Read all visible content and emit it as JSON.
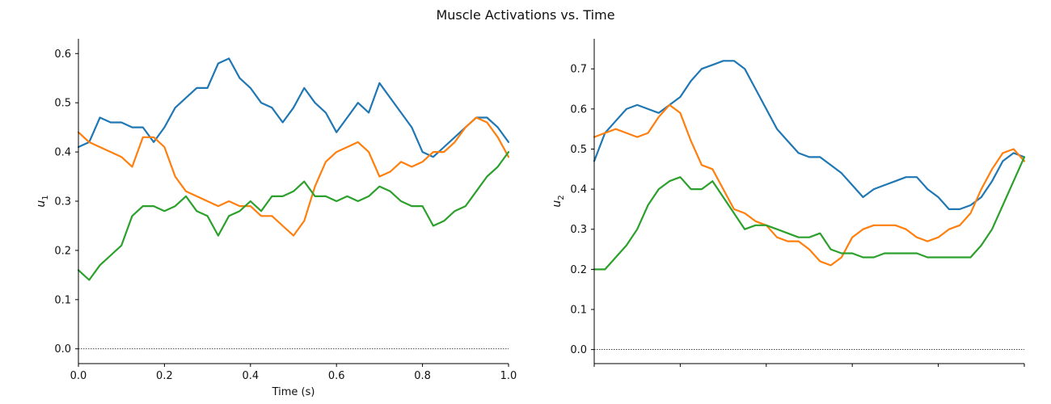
{
  "figure": {
    "title": "Muscle Activations vs. Time"
  },
  "colors": {
    "series_1": "#1f77b4",
    "series_2": "#ff7f0e",
    "series_3": "#2ca02c",
    "axis": "#000000"
  },
  "chart_data": [
    {
      "type": "line",
      "xlabel": "Time (s)",
      "ylabel": "u",
      "ylabel_subscript": "1",
      "xlim": [
        0.0,
        1.0
      ],
      "ylim": [
        -0.03,
        0.63
      ],
      "xticks": [
        "0.0",
        "0.2",
        "0.4",
        "0.6",
        "0.8",
        "1.0"
      ],
      "yticks": [
        "0.0",
        "0.1",
        "0.2",
        "0.3",
        "0.4",
        "0.5",
        "0.6"
      ],
      "reference_line": {
        "y": 0.0,
        "style": "dotted"
      },
      "grid": false,
      "x": [
        0.0,
        0.025,
        0.05,
        0.075,
        0.1,
        0.125,
        0.15,
        0.175,
        0.2,
        0.225,
        0.25,
        0.275,
        0.3,
        0.325,
        0.35,
        0.375,
        0.4,
        0.425,
        0.45,
        0.475,
        0.5,
        0.525,
        0.55,
        0.575,
        0.6,
        0.625,
        0.65,
        0.675,
        0.7,
        0.725,
        0.75,
        0.775,
        0.8,
        0.825,
        0.85,
        0.875,
        0.9,
        0.925,
        0.95,
        0.975,
        1.0
      ],
      "series": [
        {
          "values": [
            0.41,
            0.42,
            0.47,
            0.46,
            0.46,
            0.45,
            0.45,
            0.42,
            0.45,
            0.49,
            0.51,
            0.53,
            0.53,
            0.58,
            0.59,
            0.55,
            0.53,
            0.5,
            0.49,
            0.46,
            0.49,
            0.53,
            0.5,
            0.48,
            0.44,
            0.47,
            0.5,
            0.48,
            0.54,
            0.51,
            0.48,
            0.45,
            0.4,
            0.39,
            0.41,
            0.43,
            0.45,
            0.47,
            0.47,
            0.45,
            0.42
          ]
        },
        {
          "values": [
            0.44,
            0.42,
            0.41,
            0.4,
            0.39,
            0.37,
            0.43,
            0.43,
            0.41,
            0.35,
            0.32,
            0.31,
            0.3,
            0.29,
            0.3,
            0.29,
            0.29,
            0.27,
            0.27,
            0.25,
            0.23,
            0.26,
            0.33,
            0.38,
            0.4,
            0.41,
            0.42,
            0.4,
            0.35,
            0.36,
            0.38,
            0.37,
            0.38,
            0.4,
            0.4,
            0.42,
            0.45,
            0.47,
            0.46,
            0.43,
            0.39
          ]
        },
        {
          "values": [
            0.16,
            0.14,
            0.17,
            0.19,
            0.21,
            0.27,
            0.29,
            0.29,
            0.28,
            0.29,
            0.31,
            0.28,
            0.27,
            0.23,
            0.27,
            0.28,
            0.3,
            0.28,
            0.31,
            0.31,
            0.32,
            0.34,
            0.31,
            0.31,
            0.3,
            0.31,
            0.3,
            0.31,
            0.33,
            0.32,
            0.3,
            0.29,
            0.29,
            0.25,
            0.26,
            0.28,
            0.29,
            0.32,
            0.35,
            0.37,
            0.4
          ]
        }
      ]
    },
    {
      "type": "line",
      "xlabel": "",
      "ylabel": "u",
      "ylabel_subscript": "2",
      "xlim": [
        0.0,
        1.0
      ],
      "ylim": [
        -0.035,
        0.775
      ],
      "xticks": [
        "",
        "",
        "",
        "",
        "",
        ""
      ],
      "yticks": [
        "0.0",
        "0.1",
        "0.2",
        "0.3",
        "0.4",
        "0.5",
        "0.6",
        "0.7"
      ],
      "reference_line": {
        "y": 0.0,
        "style": "dotted"
      },
      "grid": false,
      "x": [
        0.0,
        0.025,
        0.05,
        0.075,
        0.1,
        0.125,
        0.15,
        0.175,
        0.2,
        0.225,
        0.25,
        0.275,
        0.3,
        0.325,
        0.35,
        0.375,
        0.4,
        0.425,
        0.45,
        0.475,
        0.5,
        0.525,
        0.55,
        0.575,
        0.6,
        0.625,
        0.65,
        0.675,
        0.7,
        0.725,
        0.75,
        0.775,
        0.8,
        0.825,
        0.85,
        0.875,
        0.9,
        0.925,
        0.95,
        0.975,
        1.0
      ],
      "series": [
        {
          "values": [
            0.47,
            0.54,
            0.57,
            0.6,
            0.61,
            0.6,
            0.59,
            0.61,
            0.63,
            0.67,
            0.7,
            0.71,
            0.72,
            0.72,
            0.7,
            0.65,
            0.6,
            0.55,
            0.52,
            0.49,
            0.48,
            0.48,
            0.46,
            0.44,
            0.41,
            0.38,
            0.4,
            0.41,
            0.42,
            0.43,
            0.43,
            0.4,
            0.38,
            0.35,
            0.35,
            0.36,
            0.38,
            0.42,
            0.47,
            0.49,
            0.48
          ]
        },
        {
          "values": [
            0.53,
            0.54,
            0.55,
            0.54,
            0.53,
            0.54,
            0.58,
            0.61,
            0.59,
            0.52,
            0.46,
            0.45,
            0.4,
            0.35,
            0.34,
            0.32,
            0.31,
            0.28,
            0.27,
            0.27,
            0.25,
            0.22,
            0.21,
            0.23,
            0.28,
            0.3,
            0.31,
            0.31,
            0.31,
            0.3,
            0.28,
            0.27,
            0.28,
            0.3,
            0.31,
            0.34,
            0.4,
            0.45,
            0.49,
            0.5,
            0.47
          ]
        },
        {
          "values": [
            0.2,
            0.2,
            0.23,
            0.26,
            0.3,
            0.36,
            0.4,
            0.42,
            0.43,
            0.4,
            0.4,
            0.42,
            0.38,
            0.34,
            0.3,
            0.31,
            0.31,
            0.3,
            0.29,
            0.28,
            0.28,
            0.29,
            0.25,
            0.24,
            0.24,
            0.23,
            0.23,
            0.24,
            0.24,
            0.24,
            0.24,
            0.23,
            0.23,
            0.23,
            0.23,
            0.23,
            0.26,
            0.3,
            0.36,
            0.42,
            0.48
          ]
        }
      ]
    }
  ]
}
